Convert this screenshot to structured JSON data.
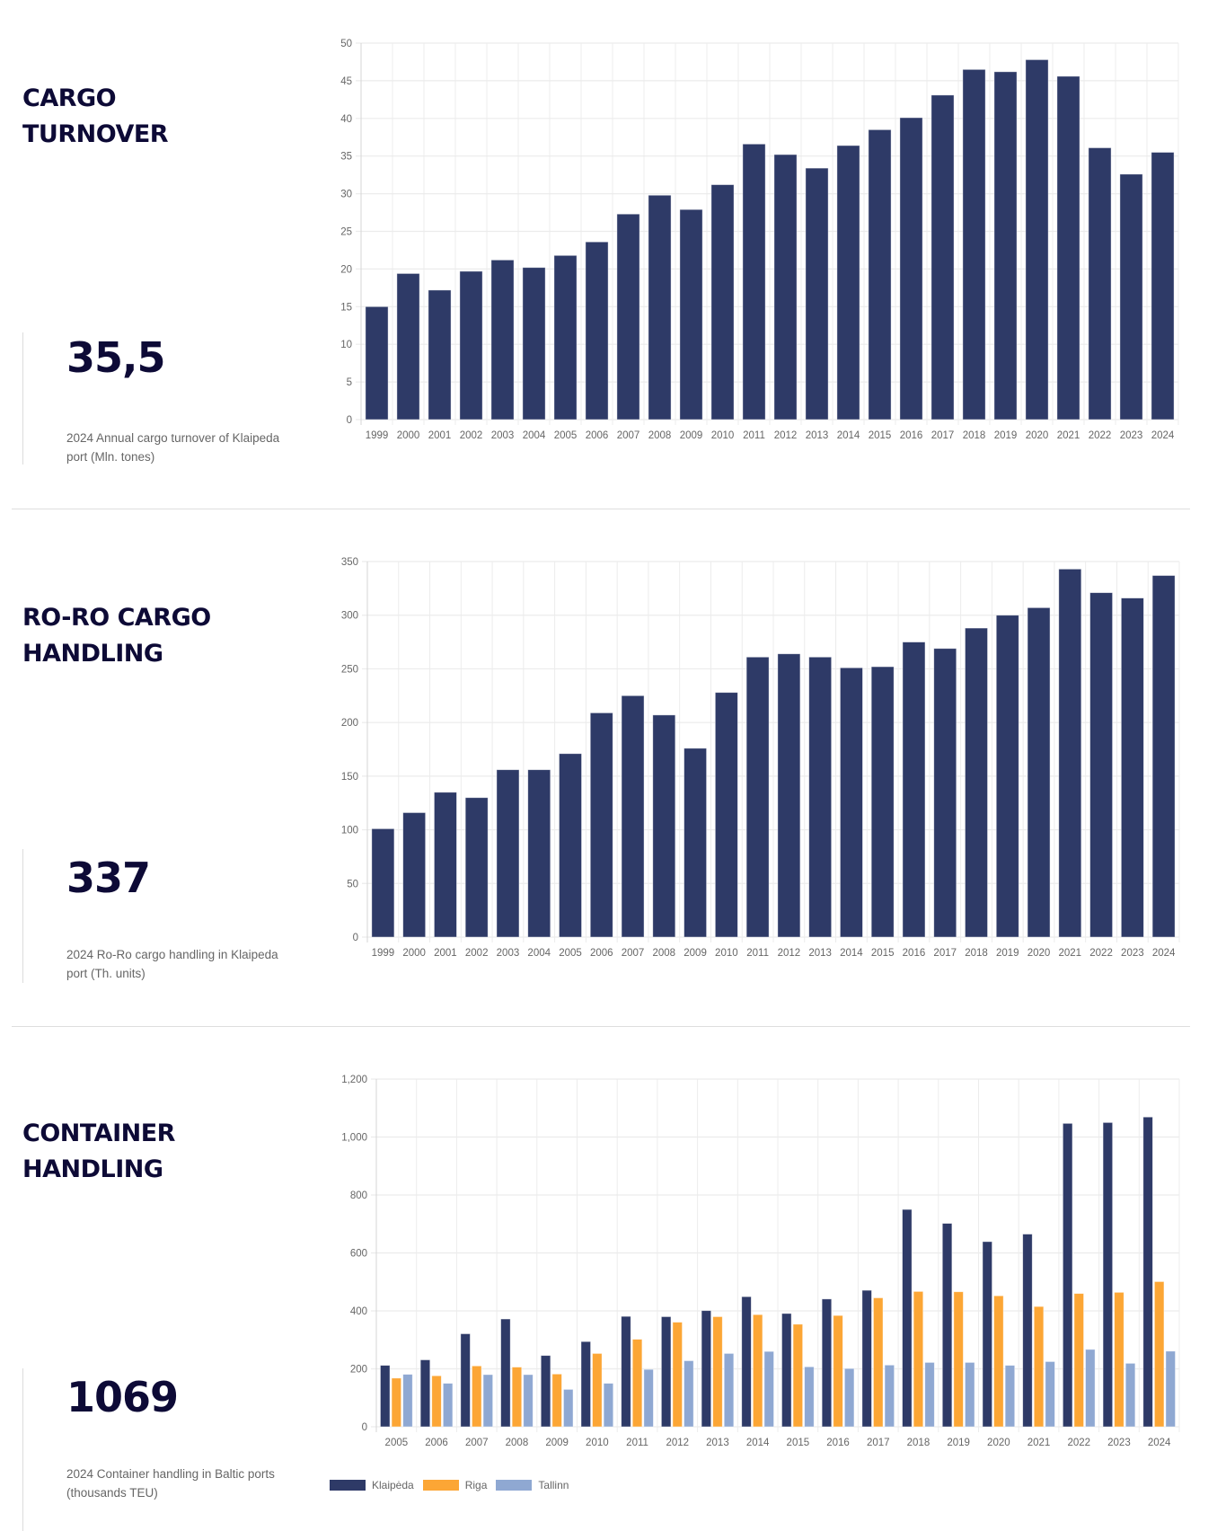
{
  "colors": {
    "klaipeda": "#2e3a67",
    "riga": "#fca635",
    "tallinn": "#8fa8d2",
    "title": "#0d0a36",
    "grid": "#ececec"
  },
  "sections": [
    {
      "title_lines": [
        "CARGO",
        "TURNOVER"
      ],
      "stat_value": "35,5",
      "stat_caption": "2024 Annual cargo turnover of Klaipeda port (Mln. tones)"
    },
    {
      "title_lines": [
        "RO-RO CARGO",
        "HANDLING"
      ],
      "stat_value": "337",
      "stat_caption": "2024 Ro-Ro cargo handling in Klaipeda port (Th. units)"
    },
    {
      "title_lines": [
        "CONTAINER",
        "HANDLING"
      ],
      "stat_value": "1069",
      "stat_caption": "2024 Container handling in Baltic ports (thousands TEU)"
    }
  ],
  "chart_data": [
    {
      "type": "bar",
      "title": "",
      "xlabel": "",
      "ylabel": "",
      "ylim": [
        0,
        50
      ],
      "yticks": [
        "0",
        "5",
        "10",
        "15",
        "20",
        "25",
        "30",
        "35",
        "40",
        "45",
        "50"
      ],
      "grid": true,
      "categories": [
        "1999",
        "2000",
        "2001",
        "2002",
        "2003",
        "2004",
        "2005",
        "2006",
        "2007",
        "2008",
        "2009",
        "2010",
        "2011",
        "2012",
        "2013",
        "2014",
        "2015",
        "2016",
        "2017",
        "2018",
        "2019",
        "2020",
        "2021",
        "2022",
        "2023",
        "2024"
      ],
      "series": [
        {
          "name": "Klaipeda",
          "values": [
            15.0,
            19.4,
            17.2,
            19.7,
            21.2,
            20.2,
            21.8,
            23.6,
            27.3,
            29.8,
            27.9,
            31.2,
            36.6,
            35.2,
            33.4,
            36.4,
            38.5,
            40.1,
            43.1,
            46.5,
            46.2,
            47.8,
            45.6,
            36.1,
            32.6,
            35.5
          ]
        }
      ]
    },
    {
      "type": "bar",
      "title": "",
      "xlabel": "",
      "ylabel": "",
      "ylim": [
        0,
        350
      ],
      "yticks": [
        "0",
        "50",
        "100",
        "150",
        "200",
        "250",
        "300",
        "350"
      ],
      "grid": true,
      "categories": [
        "1999",
        "2000",
        "2001",
        "2002",
        "2003",
        "2004",
        "2005",
        "2006",
        "2007",
        "2008",
        "2009",
        "2010",
        "2011",
        "2012",
        "2013",
        "2014",
        "2015",
        "2016",
        "2017",
        "2018",
        "2019",
        "2020",
        "2021",
        "2022",
        "2023",
        "2024"
      ],
      "series": [
        {
          "name": "Klaipeda",
          "values": [
            101,
            116,
            135,
            130,
            156,
            156,
            171,
            209,
            225,
            207,
            176,
            228,
            261,
            264,
            261,
            251,
            252,
            275,
            269,
            288,
            300,
            307,
            343,
            321,
            316,
            337
          ]
        }
      ]
    },
    {
      "type": "bar",
      "title": "",
      "xlabel": "",
      "ylabel": "",
      "ylim": [
        0,
        1200
      ],
      "yticks": [
        "0",
        "200",
        "400",
        "600",
        "800",
        "1,000",
        "1,200"
      ],
      "grid": true,
      "legend": "bottom-left",
      "categories": [
        "2005",
        "2006",
        "2007",
        "2008",
        "2009",
        "2010",
        "2011",
        "2012",
        "2013",
        "2014",
        "2015",
        "2016",
        "2017",
        "2018",
        "2019",
        "2020",
        "2021",
        "2022",
        "2023",
        "2024"
      ],
      "series": [
        {
          "name": "Klaipėda",
          "color_key": "klaipeda",
          "values": [
            212,
            231,
            321,
            372,
            246,
            294,
            381,
            380,
            401,
            449,
            391,
            441,
            471,
            750,
            702,
            639,
            665,
            1047,
            1050,
            1069
          ]
        },
        {
          "name": "Riga",
          "color_key": "riga",
          "values": [
            168,
            176,
            210,
            206,
            182,
            253,
            302,
            361,
            380,
            387,
            354,
            384,
            445,
            467,
            466,
            452,
            415,
            460,
            464,
            501
          ]
        },
        {
          "name": "Tallinn",
          "color_key": "tallinn",
          "values": [
            181,
            150,
            180,
            180,
            129,
            150,
            198,
            228,
            253,
            260,
            207,
            201,
            213,
            222,
            222,
            212,
            225,
            267,
            219,
            261
          ]
        }
      ]
    }
  ]
}
